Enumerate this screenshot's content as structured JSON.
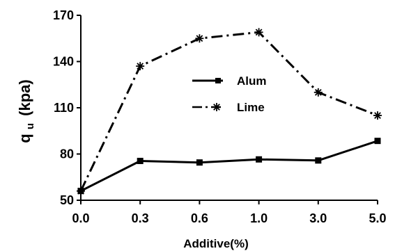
{
  "chart_data": {
    "type": "line",
    "categories": [
      "0.0",
      "0.3",
      "0.6",
      "1.0",
      "3.0",
      "5.0"
    ],
    "series": [
      {
        "name": "Alum",
        "values": [
          56,
          75.5,
          74.5,
          76.5,
          75.8,
          88.5
        ],
        "marker": "square",
        "line": "solid",
        "color": "#000000"
      },
      {
        "name": "Lime",
        "values": [
          56,
          137,
          155,
          159,
          120,
          105
        ],
        "marker": "asterisk",
        "line": "dashdot",
        "color": "#000000"
      }
    ],
    "xlabel": "Additive(%)",
    "ylabel_main": "q",
    "ylabel_sub": "u",
    "ylabel_unit": "(kpa)",
    "ylim": [
      50,
      170
    ],
    "yticks": [
      50,
      80,
      110,
      140,
      170
    ],
    "grid": false,
    "legend_position": "center-right"
  }
}
